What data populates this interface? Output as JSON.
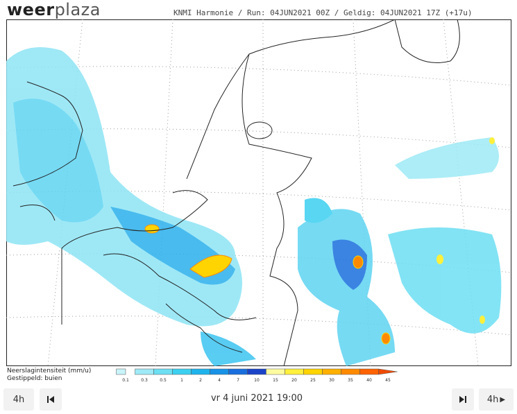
{
  "logo": [
    "weer",
    "plaza"
  ],
  "header": {
    "title": "KNMI Harmonie / Run: 04JUN2021 00Z / Geldig: 04JUN2021 17Z (+17u)"
  },
  "legend": {
    "title": "Neerslagintensiteit (mm/u)",
    "subtitle": "Gestippeld: buien",
    "ticks": [
      0.1,
      0.3,
      0.5,
      1,
      2,
      4,
      7,
      10,
      15,
      20,
      25,
      30,
      35,
      40,
      45
    ],
    "colors": [
      "#c8f4fa",
      "#9eeaf6",
      "#6ddff3",
      "#3cd0f0",
      "#1fb3ec",
      "#1892e6",
      "#1a6fde",
      "#1a43c8",
      "#fffca0",
      "#fff03c",
      "#ffd400",
      "#ffb000",
      "#ff8a00",
      "#ff6200",
      "#f04a00"
    ]
  },
  "controls": {
    "back_step": "4h",
    "date": "vr 4 juni 2021 19:00",
    "forward_step": "4h"
  }
}
